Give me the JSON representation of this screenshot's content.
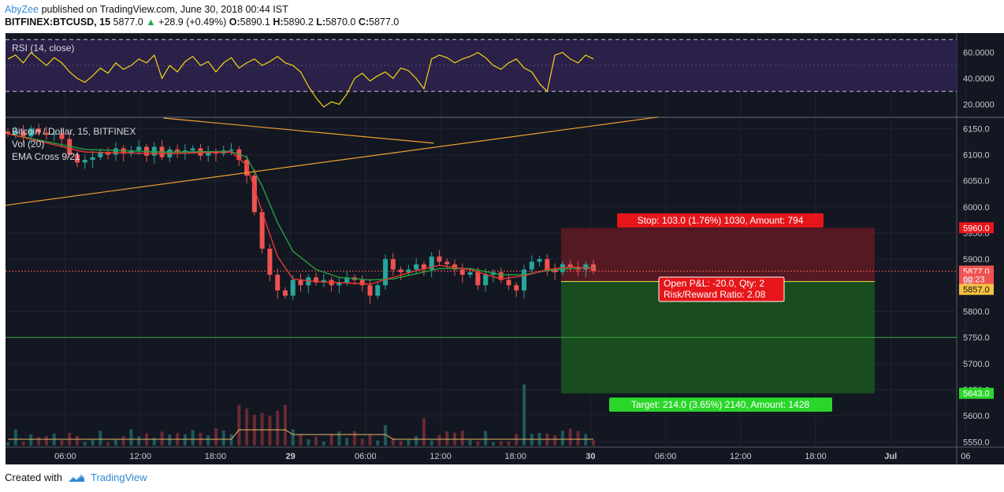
{
  "header": {
    "author": "AbyZee",
    "published": "published on TradingView.com, June 30, 2018 00:44 IST",
    "symbol": "BITFINEX:BTCUSD, 15",
    "last": "5877.0",
    "change": "+28.9 (+0.49%)",
    "o_label": "O:",
    "o": "5890.1",
    "h_label": "H:",
    "h": "5890.2",
    "l_label": "L:",
    "l": "5870.0",
    "c_label": "C:",
    "c": "5877.0"
  },
  "footer": {
    "created_with": "Created with",
    "brand": "TradingView"
  },
  "colors": {
    "background": "#131722",
    "up": "#26a69a",
    "down": "#ef5350",
    "ema_fast": "#e53935",
    "ema_slow": "#26a244",
    "rsi": "#f2d813",
    "trendline": "#f0a030",
    "stop_zone": "#6b1b24",
    "target_zone": "#1b5a1f",
    "label_red": "#e6161a",
    "label_green": "#2bd62b"
  },
  "chart_data": [
    {
      "type": "line",
      "title": "RSI (14, close)",
      "ylim": [
        10,
        75
      ],
      "y_ticks": [
        "60.0000",
        "40.0000",
        "20.0000"
      ],
      "levels": [
        70,
        30
      ],
      "series": [
        {
          "name": "RSI (14, close)",
          "x": [
            0,
            1,
            2,
            3,
            4,
            5,
            6,
            7,
            8,
            9,
            10,
            11,
            12,
            13,
            14,
            15,
            16,
            17,
            18,
            19,
            20,
            21,
            22,
            23,
            24,
            25,
            26,
            27,
            28,
            29,
            30,
            31,
            32,
            33,
            34,
            35,
            36,
            37,
            38,
            39,
            40,
            41,
            42,
            43,
            44,
            45,
            46,
            47,
            48,
            49,
            50,
            51,
            52,
            53,
            54,
            55,
            56,
            57,
            58,
            59,
            60,
            61,
            62,
            63,
            64,
            65,
            66,
            67,
            68,
            69,
            70,
            71,
            72,
            73,
            74,
            75,
            76
          ],
          "values": [
            55,
            58,
            52,
            60,
            55,
            50,
            56,
            52,
            45,
            40,
            37,
            42,
            48,
            44,
            52,
            47,
            50,
            55,
            52,
            58,
            40,
            50,
            45,
            53,
            57,
            50,
            53,
            45,
            52,
            56,
            48,
            52,
            55,
            50,
            53,
            57,
            52,
            50,
            45,
            34,
            25,
            18,
            22,
            20,
            28,
            40,
            44,
            38,
            42,
            45,
            40,
            48,
            46,
            40,
            32,
            55,
            58,
            56,
            52,
            55,
            57,
            60,
            56,
            50,
            47,
            52,
            55,
            48,
            45,
            36,
            30,
            58,
            60,
            55,
            52,
            58,
            55
          ]
        }
      ]
    },
    {
      "type": "line",
      "title": "Bitcoin / Dollar, 15, BITFINEX",
      "xlabel": "",
      "ylabel": "",
      "ylim": [
        5540,
        6170
      ],
      "x_ticks": [
        "06:00",
        "12:00",
        "18:00",
        "29",
        "06:00",
        "12:00",
        "18:00",
        "30",
        "06:00",
        "12:00",
        "18:00",
        "Jul",
        "06"
      ],
      "y_ticks": [
        "6150.0",
        "6100.0",
        "6050.0",
        "6000.0",
        "5950.0",
        "5900.0",
        "5800.0",
        "5750.0",
        "5700.0",
        "5650.0",
        "5600.0",
        "5550.0"
      ],
      "legend": [
        "Vol (20)",
        "EMA Cross 9/21"
      ],
      "series": [
        {
          "name": "close",
          "x": [
            0,
            1,
            2,
            3,
            4,
            5,
            6,
            7,
            8,
            9,
            10,
            11,
            12,
            13,
            14,
            15,
            16,
            17,
            18,
            19,
            20,
            21,
            22,
            23,
            24,
            25,
            26,
            27,
            28,
            29,
            30,
            31,
            32,
            33,
            34,
            35,
            36,
            37,
            38,
            39,
            40,
            41,
            42,
            43,
            44,
            45,
            46,
            47,
            48,
            49,
            50,
            51,
            52,
            53,
            54,
            55,
            56,
            57,
            58,
            59,
            60,
            61,
            62,
            63,
            64,
            65,
            66,
            67,
            68,
            69,
            70,
            71,
            72,
            73,
            74,
            75,
            76
          ],
          "values": [
            6140,
            6145,
            6135,
            6150,
            6142,
            6138,
            6140,
            6130,
            6100,
            6085,
            6090,
            6095,
            6105,
            6100,
            6112,
            6102,
            6108,
            6115,
            6098,
            6115,
            6095,
            6110,
            6105,
            6108,
            6112,
            6098,
            6105,
            6102,
            6108,
            6110,
            6090,
            6060,
            5990,
            5920,
            5870,
            5840,
            5830,
            5860,
            5850,
            5865,
            5855,
            5860,
            5850,
            5855,
            5865,
            5860,
            5850,
            5830,
            5850,
            5900,
            5880,
            5875,
            5880,
            5890,
            5880,
            5905,
            5895,
            5890,
            5880,
            5870,
            5875,
            5850,
            5870,
            5875,
            5860,
            5850,
            5840,
            5880,
            5895,
            5900,
            5880,
            5875,
            5890,
            5885,
            5880,
            5890,
            5877
          ]
        },
        {
          "name": "EMA 9",
          "x": [
            0,
            10,
            20,
            29,
            31,
            33,
            35,
            37,
            40,
            43,
            47,
            50,
            53,
            56,
            60,
            64,
            67,
            70,
            73,
            76
          ],
          "values": [
            6140,
            6105,
            6102,
            6105,
            6080,
            5990,
            5905,
            5862,
            5857,
            5855,
            5852,
            5865,
            5878,
            5888,
            5880,
            5862,
            5868,
            5880,
            5885,
            5882
          ]
        },
        {
          "name": "EMA 21",
          "x": [
            0,
            10,
            20,
            29,
            31,
            33,
            35,
            37,
            40,
            43,
            47,
            50,
            53,
            56,
            60,
            64,
            67,
            70,
            73,
            76
          ],
          "values": [
            6140,
            6110,
            6105,
            6106,
            6095,
            6040,
            5970,
            5915,
            5880,
            5865,
            5860,
            5862,
            5872,
            5882,
            5882,
            5870,
            5870,
            5878,
            5882,
            5884
          ]
        },
        {
          "name": "Trendline support",
          "x": [
            0,
            84
          ],
          "values": [
            6003,
            6172
          ]
        },
        {
          "name": "Trendline resistance",
          "x": [
            20,
            55
          ],
          "values": [
            6170,
            6122
          ]
        }
      ],
      "annotations": {
        "stop_label": "Stop: 103.0 (1.76%) 1030, Amount: 794",
        "pnl_label": "Open P&L: -20.0, Qty: 2",
        "rr_label": "Risk/Reward Ratio: 2.08",
        "target_label": "Target: 214.0 (3.65%) 2140, Amount: 1428",
        "stop_price": "5960.0",
        "current_price": "5877.0",
        "countdown": "00:23",
        "entry_price": "5857.0",
        "target_price": "5643.0",
        "hidden_price_prefix": "58",
        "stop_value": 5960,
        "entry_value": 5857,
        "target_value": 5643,
        "current_value": 5877,
        "horizontal_line_value": 5750
      }
    }
  ]
}
